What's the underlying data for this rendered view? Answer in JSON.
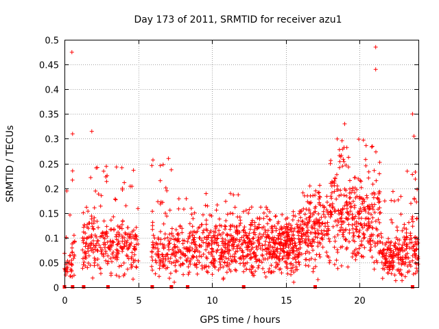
{
  "chart_data": {
    "type": "scatter",
    "title": "Day 173 of 2011, SRMTID for receiver azu1",
    "xlabel": "GPS time / hours",
    "ylabel": "SRMTID / TECUs",
    "xlim": [
      0,
      24
    ],
    "ylim": [
      0,
      0.5
    ],
    "xticks": [
      0,
      5,
      10,
      15,
      20
    ],
    "yticks": [
      0,
      0.05,
      0.1,
      0.15,
      0.2,
      0.25,
      0.3,
      0.35,
      0.4,
      0.45,
      0.5
    ],
    "xtick_labels": [
      "0",
      "5",
      "10",
      "15",
      "20"
    ],
    "ytick_labels": [
      "0",
      "0.05",
      "0.1",
      "0.15",
      "0.2",
      "0.25",
      "0.3",
      "0.35",
      "0.4",
      "0.45",
      "0.5"
    ],
    "grid": true,
    "marker": "+",
    "color": "#ff0000",
    "notable_points": [
      {
        "x": 0.5,
        "y": 0.475
      },
      {
        "x": 0.55,
        "y": 0.31
      },
      {
        "x": 0.55,
        "y": 0.235
      },
      {
        "x": 1.85,
        "y": 0.315
      },
      {
        "x": 6.0,
        "y": 0.257
      },
      {
        "x": 7.05,
        "y": 0.26
      },
      {
        "x": 19.0,
        "y": 0.33
      },
      {
        "x": 21.1,
        "y": 0.485
      },
      {
        "x": 21.1,
        "y": 0.44
      },
      {
        "x": 23.6,
        "y": 0.35
      },
      {
        "x": 23.7,
        "y": 0.305
      }
    ],
    "zero_markers_x": [
      0.0,
      0.55,
      1.3,
      2.95,
      5.95,
      7.25,
      8.35,
      12.15,
      17.0,
      23.6
    ],
    "activity_profile": [
      {
        "range": [
          0.0,
          0.5
        ],
        "center": 0.04,
        "max": 0.2,
        "n": 30
      },
      {
        "range": [
          0.5,
          0.7
        ],
        "center": 0.08,
        "max": 0.23,
        "n": 15
      },
      {
        "range": [
          1.2,
          2.2
        ],
        "center": 0.09,
        "max": 0.3,
        "n": 80
      },
      {
        "range": [
          2.2,
          3.2
        ],
        "center": 0.08,
        "max": 0.26,
        "n": 70
      },
      {
        "range": [
          3.2,
          5.0
        ],
        "center": 0.08,
        "max": 0.25,
        "n": 130
      },
      {
        "range": [
          5.9,
          7.5
        ],
        "center": 0.07,
        "max": 0.25,
        "n": 110
      },
      {
        "range": [
          7.5,
          9.0
        ],
        "center": 0.07,
        "max": 0.18,
        "n": 110
      },
      {
        "range": [
          9.0,
          12.0
        ],
        "center": 0.08,
        "max": 0.19,
        "n": 250
      },
      {
        "range": [
          12.0,
          14.0
        ],
        "center": 0.08,
        "max": 0.17,
        "n": 180
      },
      {
        "range": [
          14.0,
          16.0
        ],
        "center": 0.08,
        "max": 0.16,
        "n": 240
      },
      {
        "range": [
          16.0,
          18.0
        ],
        "center": 0.11,
        "max": 0.21,
        "n": 180
      },
      {
        "range": [
          18.0,
          20.0
        ],
        "center": 0.14,
        "max": 0.3,
        "n": 190
      },
      {
        "range": [
          20.0,
          21.5
        ],
        "center": 0.13,
        "max": 0.3,
        "n": 140
      },
      {
        "range": [
          21.5,
          23.0
        ],
        "center": 0.06,
        "max": 0.2,
        "n": 140
      },
      {
        "range": [
          23.0,
          24.0
        ],
        "center": 0.07,
        "max": 0.24,
        "n": 90
      }
    ]
  }
}
